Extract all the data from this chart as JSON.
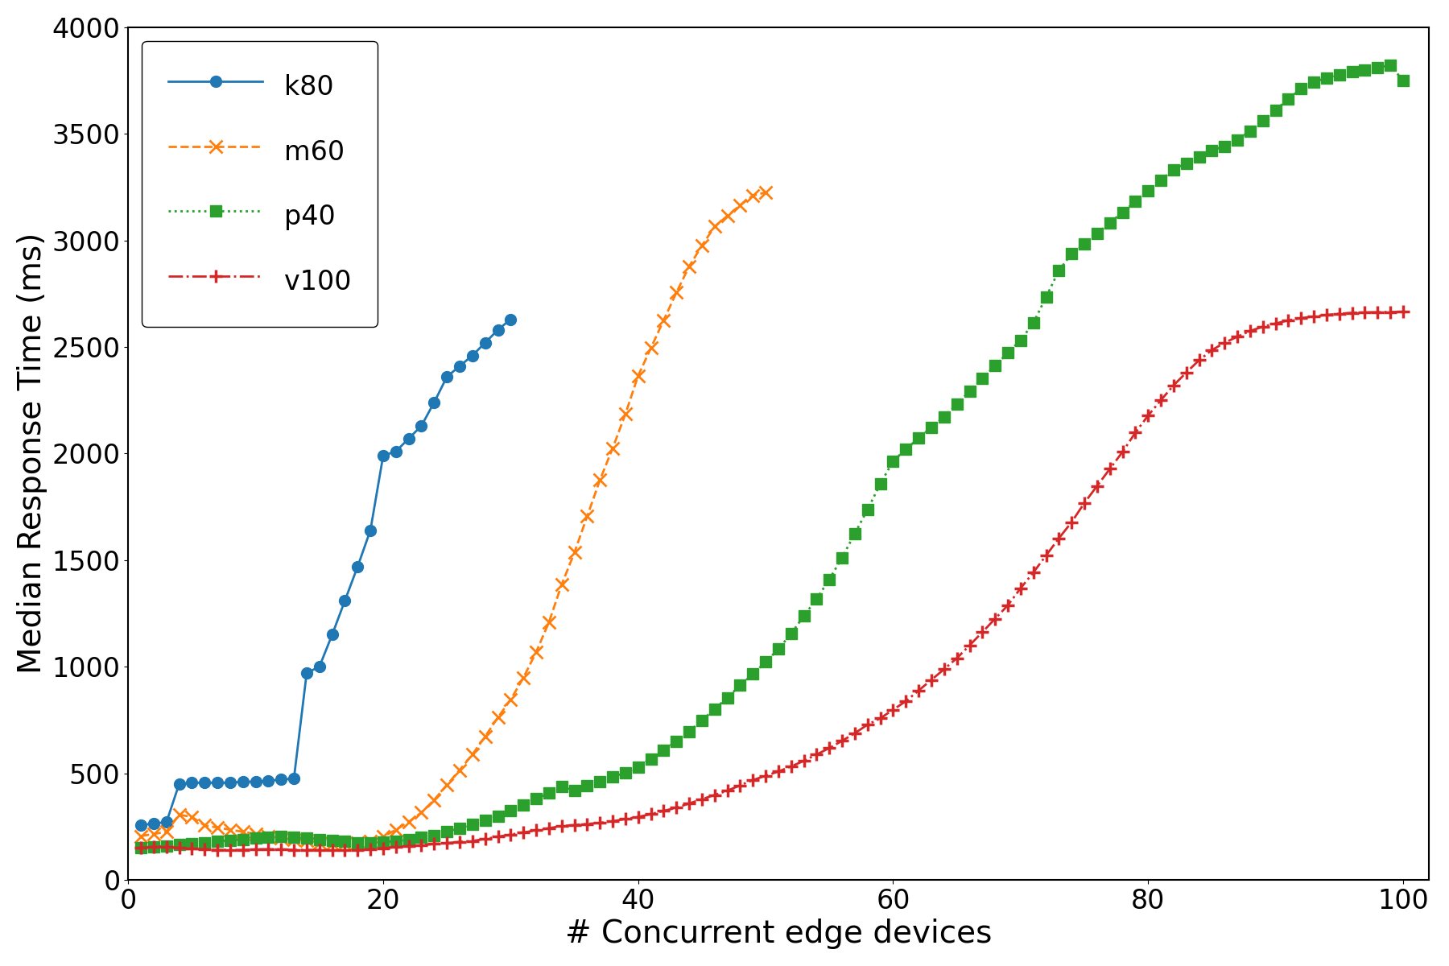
{
  "xlabel": "# Concurrent edge devices",
  "ylabel": "Median Response Time (ms)",
  "xlim": [
    0,
    102
  ],
  "ylim": [
    0,
    4000
  ],
  "xticks": [
    0,
    20,
    40,
    60,
    80,
    100
  ],
  "yticks": [
    0,
    500,
    1000,
    1500,
    2000,
    2500,
    3000,
    3500,
    4000
  ],
  "series": [
    {
      "label": "k80",
      "color": "#1f77b4",
      "linestyle": "-",
      "marker": "o",
      "markersize": 10,
      "linewidth": 2.0,
      "x": [
        1,
        2,
        3,
        4,
        5,
        6,
        7,
        8,
        9,
        10,
        11,
        12,
        13,
        14,
        15,
        16,
        17,
        18,
        19,
        20,
        21,
        22,
        23,
        24,
        25,
        26,
        27,
        28,
        29,
        30
      ],
      "y": [
        255,
        265,
        270,
        450,
        455,
        455,
        455,
        455,
        460,
        460,
        465,
        470,
        475,
        970,
        1000,
        1150,
        1310,
        1470,
        1640,
        1990,
        2010,
        2070,
        2130,
        2240,
        2360,
        2410,
        2460,
        2520,
        2580,
        2630
      ]
    },
    {
      "label": "m60",
      "color": "#ff7f0e",
      "linestyle": "--",
      "marker": "x",
      "markersize": 11,
      "markeredgewidth": 2.0,
      "linewidth": 2.0,
      "x": [
        1,
        2,
        3,
        4,
        5,
        6,
        7,
        8,
        9,
        10,
        11,
        12,
        13,
        14,
        15,
        16,
        17,
        18,
        19,
        20,
        21,
        22,
        23,
        24,
        25,
        26,
        27,
        28,
        29,
        30,
        31,
        32,
        33,
        34,
        35,
        36,
        37,
        38,
        39,
        40,
        41,
        42,
        43,
        44,
        45,
        46,
        47,
        48,
        49,
        50
      ],
      "y": [
        205,
        215,
        225,
        305,
        295,
        255,
        245,
        235,
        225,
        215,
        205,
        195,
        190,
        185,
        175,
        168,
        168,
        172,
        182,
        202,
        235,
        272,
        315,
        375,
        445,
        515,
        588,
        672,
        762,
        845,
        948,
        1068,
        1208,
        1385,
        1535,
        1705,
        1875,
        2025,
        2185,
        2365,
        2495,
        2625,
        2755,
        2878,
        2975,
        3065,
        3115,
        3165,
        3210,
        3225
      ]
    },
    {
      "label": "p40",
      "color": "#2ca02c",
      "linestyle": ":",
      "marker": "s",
      "markersize": 10,
      "linewidth": 2.0,
      "x": [
        1,
        2,
        3,
        4,
        5,
        6,
        7,
        8,
        9,
        10,
        11,
        12,
        13,
        14,
        15,
        16,
        17,
        18,
        19,
        20,
        21,
        22,
        23,
        24,
        25,
        26,
        27,
        28,
        29,
        30,
        31,
        32,
        33,
        34,
        35,
        36,
        37,
        38,
        39,
        40,
        41,
        42,
        43,
        44,
        45,
        46,
        47,
        48,
        49,
        50,
        51,
        52,
        53,
        54,
        55,
        56,
        57,
        58,
        59,
        60,
        61,
        62,
        63,
        64,
        65,
        66,
        67,
        68,
        69,
        70,
        71,
        72,
        73,
        74,
        75,
        76,
        77,
        78,
        79,
        80,
        81,
        82,
        83,
        84,
        85,
        86,
        87,
        88,
        89,
        90,
        91,
        92,
        93,
        94,
        95,
        96,
        97,
        98,
        99,
        100
      ],
      "y": [
        150,
        155,
        160,
        165,
        170,
        175,
        180,
        185,
        190,
        195,
        200,
        205,
        200,
        195,
        190,
        185,
        180,
        175,
        175,
        178,
        182,
        188,
        198,
        208,
        225,
        242,
        260,
        278,
        298,
        325,
        352,
        380,
        408,
        438,
        420,
        442,
        462,
        482,
        502,
        530,
        568,
        608,
        650,
        695,
        748,
        800,
        855,
        912,
        965,
        1022,
        1082,
        1155,
        1238,
        1318,
        1410,
        1512,
        1625,
        1738,
        1858,
        1965,
        2020,
        2072,
        2122,
        2172,
        2232,
        2292,
        2352,
        2412,
        2472,
        2532,
        2612,
        2735,
        2858,
        2938,
        2982,
        3032,
        3082,
        3132,
        3182,
        3232,
        3282,
        3332,
        3362,
        3392,
        3422,
        3442,
        3472,
        3512,
        3562,
        3612,
        3662,
        3712,
        3742,
        3762,
        3778,
        3790,
        3798,
        3810,
        3822,
        3750
      ]
    },
    {
      "label": "v100",
      "color": "#d62728",
      "linestyle": "-.",
      "marker": "+",
      "markersize": 12,
      "markeredgewidth": 2.5,
      "linewidth": 2.0,
      "x": [
        1,
        2,
        3,
        4,
        5,
        6,
        7,
        8,
        9,
        10,
        11,
        12,
        13,
        14,
        15,
        16,
        17,
        18,
        19,
        20,
        21,
        22,
        23,
        24,
        25,
        26,
        27,
        28,
        29,
        30,
        31,
        32,
        33,
        34,
        35,
        36,
        37,
        38,
        39,
        40,
        41,
        42,
        43,
        44,
        45,
        46,
        47,
        48,
        49,
        50,
        51,
        52,
        53,
        54,
        55,
        56,
        57,
        58,
        59,
        60,
        61,
        62,
        63,
        64,
        65,
        66,
        67,
        68,
        69,
        70,
        71,
        72,
        73,
        74,
        75,
        76,
        77,
        78,
        79,
        80,
        81,
        82,
        83,
        84,
        85,
        86,
        87,
        88,
        89,
        90,
        91,
        92,
        93,
        94,
        95,
        96,
        97,
        98,
        99,
        100
      ],
      "y": [
        150,
        155,
        155,
        150,
        145,
        143,
        140,
        140,
        140,
        143,
        143,
        143,
        140,
        140,
        140,
        138,
        138,
        138,
        143,
        148,
        153,
        158,
        162,
        168,
        172,
        178,
        182,
        192,
        202,
        212,
        222,
        232,
        242,
        252,
        257,
        262,
        267,
        275,
        285,
        295,
        308,
        323,
        338,
        358,
        378,
        398,
        418,
        443,
        468,
        488,
        508,
        532,
        558,
        588,
        618,
        652,
        688,
        728,
        758,
        798,
        838,
        888,
        938,
        988,
        1040,
        1100,
        1162,
        1225,
        1288,
        1368,
        1442,
        1522,
        1602,
        1678,
        1768,
        1848,
        1928,
        2008,
        2098,
        2178,
        2250,
        2320,
        2380,
        2438,
        2485,
        2520,
        2548,
        2575,
        2595,
        2610,
        2625,
        2635,
        2643,
        2650,
        2656,
        2660,
        2662,
        2663,
        2664,
        2665
      ]
    }
  ]
}
